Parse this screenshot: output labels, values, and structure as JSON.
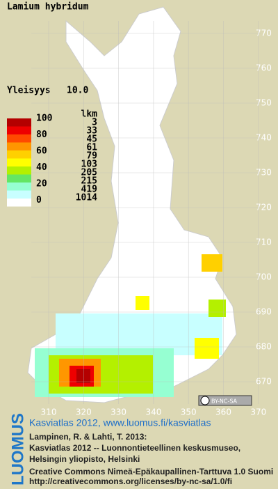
{
  "title": "Lamium hybridum",
  "frequency": {
    "label": "Yleisyys",
    "value": "10.0"
  },
  "legend": {
    "header": "lkm",
    "scale_labels": [
      "100",
      "80",
      "60",
      "40",
      "20",
      "0"
    ],
    "colors": [
      "#b40000",
      "#ee0000",
      "#ff4a00",
      "#ff9600",
      "#ffd000",
      "#ffff00",
      "#b4f000",
      "#64e664",
      "#96ffd2",
      "#c8ffff",
      "#ffffff"
    ],
    "counts": [
      "3",
      "33",
      "45",
      "61",
      "79",
      "103",
      "205",
      "215",
      "419",
      "1014"
    ]
  },
  "axes": {
    "yticks": [
      770,
      760,
      750,
      740,
      730,
      720,
      710,
      700,
      690,
      680,
      670
    ],
    "xticks": [
      310,
      320,
      330,
      340,
      350,
      360,
      370
    ]
  },
  "license_badge": "BY-NC-SA",
  "footer": {
    "brand": "LUOMUS",
    "link": "Kasviatlas 2012, www.luomus.fi/kasviatlas",
    "citation": [
      "Lampinen, R. & Lahti, T. 2013:",
      "Kasviatlas 2012 -- Luonnontieteellinen keskusmuseo,",
      "Helsingin yliopisto, Helsinki"
    ],
    "license": [
      "Creative Commons Nimeä-Epäkaupallinen-Tarttuva 1.0 Suomi",
      "http://creativecommons.org/licenses/by-nc-sa/1.0/fi"
    ]
  }
}
